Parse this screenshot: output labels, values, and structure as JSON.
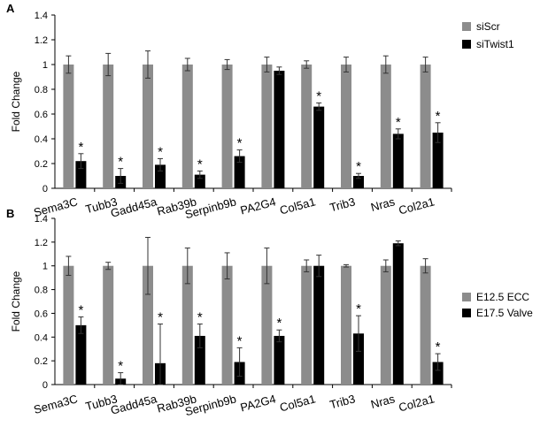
{
  "chart_data": [
    {
      "type": "bar",
      "panel_label": "A",
      "ylabel": "Fold Change",
      "ylim": [
        0,
        1.4
      ],
      "yticks": [
        "0",
        "0.2",
        "0.4",
        "0.6",
        "0.8",
        "1",
        "1.2",
        "1.4"
      ],
      "categories": [
        "Sema3C",
        "Tubb3",
        "Gadd45a",
        "Rab39b",
        "Serpinb9b",
        "PA2G4",
        "Col5a1",
        "Trib3",
        "Nras",
        "Col2a1"
      ],
      "series": [
        {
          "name": "siScr",
          "color": "#8c8c8c",
          "values": [
            1,
            1,
            1,
            1,
            1,
            1,
            1,
            1,
            1,
            1
          ],
          "errors": [
            0.07,
            0.09,
            0.11,
            0.05,
            0.04,
            0.06,
            0.03,
            0.06,
            0.07,
            0.06
          ]
        },
        {
          "name": "siTwist1",
          "color": "#000000",
          "values": [
            0.22,
            0.1,
            0.19,
            0.11,
            0.26,
            0.95,
            0.66,
            0.1,
            0.44,
            0.45
          ],
          "errors": [
            0.06,
            0.06,
            0.05,
            0.03,
            0.05,
            0.03,
            0.03,
            0.02,
            0.04,
            0.08
          ]
        }
      ],
      "significance": [
        true,
        true,
        true,
        true,
        true,
        false,
        true,
        true,
        true,
        true
      ],
      "significance_marker": "*",
      "grid": false,
      "legend_position": "right"
    },
    {
      "type": "bar",
      "panel_label": "B",
      "ylabel": "Fold Change",
      "ylim": [
        0,
        1.4
      ],
      "yticks": [
        "0",
        "0.2",
        "0.4",
        "0.6",
        "0.8",
        "1",
        "1.2",
        "1.4"
      ],
      "categories": [
        "Sema3C",
        "Tubb3",
        "Gadd45a",
        "Rab39b",
        "Serpinb9b",
        "PA2G4",
        "Col5a1",
        "Trib3",
        "Nras",
        "Col2a1"
      ],
      "series": [
        {
          "name": "E12.5 ECC",
          "color": "#8c8c8c",
          "values": [
            1,
            1,
            1,
            1,
            1,
            1,
            1,
            1,
            1,
            1
          ],
          "errors": [
            0.08,
            0.03,
            0.24,
            0.15,
            0.11,
            0.15,
            0.05,
            0.01,
            0.05,
            0.06
          ]
        },
        {
          "name": "E17.5 Valve",
          "color": "#000000",
          "values": [
            0.5,
            0.05,
            0.18,
            0.41,
            0.19,
            0.41,
            1.0,
            0.43,
            1.19,
            0.19
          ],
          "errors": [
            0.07,
            0.05,
            0.33,
            0.1,
            0.12,
            0.05,
            0.09,
            0.15,
            0.02,
            0.07
          ]
        }
      ],
      "significance": [
        true,
        true,
        true,
        true,
        true,
        true,
        false,
        true,
        false,
        true
      ],
      "significance_marker": "*",
      "grid": false,
      "legend_position": "right"
    }
  ]
}
